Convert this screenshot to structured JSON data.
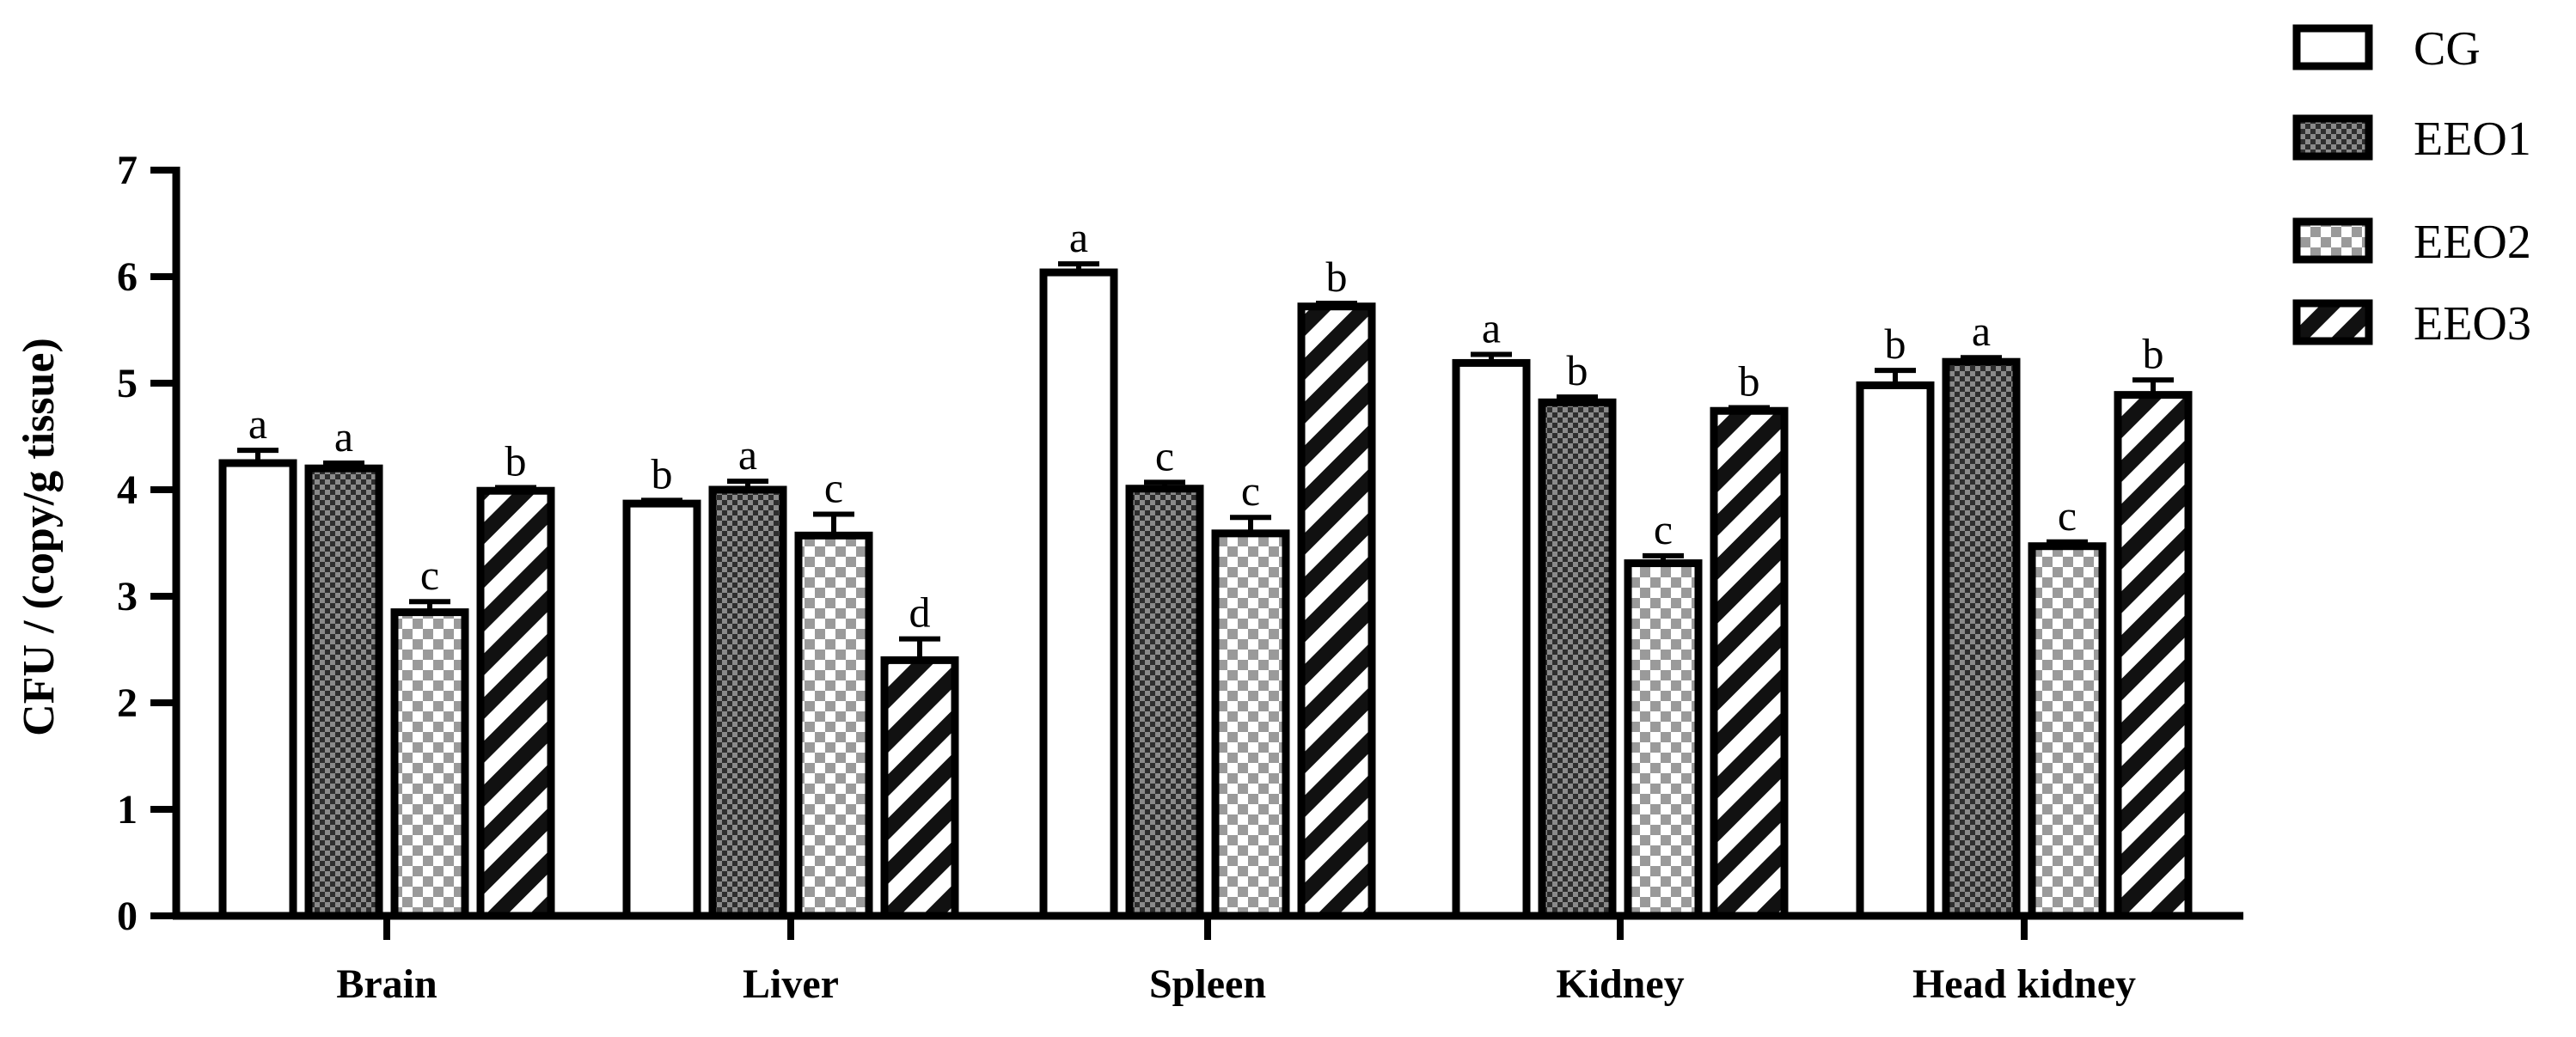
{
  "chart_data": {
    "type": "bar",
    "title": "",
    "xlabel": "",
    "ylabel": "CFU / (copy/g tissue)",
    "ylim": [
      0,
      7
    ],
    "yticks": [
      0,
      1,
      2,
      3,
      4,
      5,
      6,
      7
    ],
    "grid": false,
    "legend_position": "top-right",
    "categories": [
      "Brain",
      "Liver",
      "Spleen",
      "Kidney",
      "Head kidney"
    ],
    "series": [
      {
        "name": "CG",
        "pattern": "open",
        "values": [
          4.25,
          3.87,
          6.04,
          5.19,
          4.98
        ],
        "errors": [
          0.12,
          0.03,
          0.08,
          0.08,
          0.14
        ],
        "letters": [
          "a",
          "b",
          "a",
          "a",
          "b"
        ]
      },
      {
        "name": "EEO1",
        "pattern": "dense-check",
        "values": [
          4.2,
          4.0,
          4.01,
          4.82,
          5.2
        ],
        "errors": [
          0.05,
          0.08,
          0.06,
          0.05,
          0.04
        ],
        "letters": [
          "a",
          "a",
          "c",
          "b",
          "a"
        ]
      },
      {
        "name": "EEO2",
        "pattern": "check",
        "values": [
          2.85,
          3.57,
          3.59,
          3.31,
          3.47
        ],
        "errors": [
          0.1,
          0.2,
          0.15,
          0.07,
          0.04
        ],
        "letters": [
          "c",
          "c",
          "c",
          "c",
          "c"
        ]
      },
      {
        "name": "EEO3",
        "pattern": "diagonal",
        "values": [
          3.99,
          2.4,
          5.72,
          4.74,
          4.89
        ],
        "errors": [
          0.03,
          0.2,
          0.03,
          0.03,
          0.14
        ],
        "letters": [
          "b",
          "d",
          "b",
          "b",
          "b"
        ]
      }
    ]
  },
  "colors": {
    "stroke": "#000000",
    "fill": "#ffffff",
    "dark_fill": "#3a3a3a",
    "check_fill": "#c8c8c8"
  }
}
